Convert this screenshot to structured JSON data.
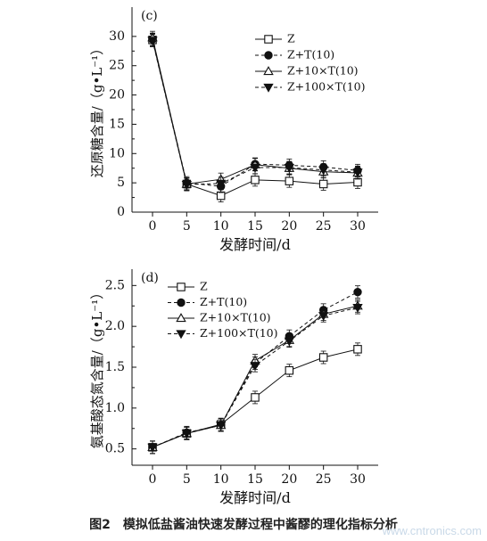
{
  "caption": "图2　模拟低盐酱油快速发酵过程中酱醪的理化指标分析",
  "watermark": "www.cntronics.com",
  "chart_data": [
    {
      "type": "line",
      "panel": "(c)",
      "xlabel": "发酵时间/d",
      "ylabel": "还原糖含量/（g•L⁻¹）",
      "x": [
        0,
        5,
        10,
        15,
        20,
        25,
        30
      ],
      "xlim": [
        -3,
        33
      ],
      "ylim": [
        0,
        35
      ],
      "yticks": [
        0,
        5,
        10,
        15,
        20,
        25,
        30
      ],
      "legend": "top-right",
      "series": [
        {
          "name": "Z",
          "marker": "square-open",
          "dash": "solid",
          "values": [
            29.4,
            4.8,
            2.8,
            5.5,
            5.3,
            4.8,
            5.1
          ]
        },
        {
          "name": "Z+T(10)",
          "marker": "circle-filled",
          "dash": "dashed",
          "values": [
            29.5,
            5.0,
            4.4,
            8.2,
            8.0,
            7.7,
            7.1
          ]
        },
        {
          "name": "Z+10×T(10)",
          "marker": "triangle-up-open",
          "dash": "solid",
          "values": [
            29.8,
            4.8,
            5.6,
            8.1,
            7.5,
            6.9,
            6.7
          ]
        },
        {
          "name": "Z+100×T(10)",
          "marker": "triangle-down-filled",
          "dash": "dashed",
          "values": [
            29.3,
            4.7,
            4.9,
            7.6,
            7.6,
            7.2,
            6.8
          ]
        }
      ]
    },
    {
      "type": "line",
      "panel": "(d)",
      "xlabel": "发酵时间/d",
      "ylabel": "氨基酸态氮含量/（g•L⁻¹）",
      "x": [
        0,
        5,
        10,
        15,
        20,
        25,
        30
      ],
      "xlim": [
        -3,
        33
      ],
      "ylim": [
        0.3,
        2.7
      ],
      "yticks": [
        0.5,
        1.0,
        1.5,
        2.0,
        2.5
      ],
      "legend": "top-left",
      "series": [
        {
          "name": "Z",
          "marker": "square-open",
          "dash": "solid",
          "values": [
            0.52,
            0.69,
            0.8,
            1.13,
            1.46,
            1.62,
            1.72
          ]
        },
        {
          "name": "Z+T(10)",
          "marker": "circle-filled",
          "dash": "dashed",
          "values": [
            0.52,
            0.7,
            0.79,
            1.55,
            1.88,
            2.2,
            2.42
          ]
        },
        {
          "name": "Z+10×T(10)",
          "marker": "triangle-up-open",
          "dash": "solid",
          "values": [
            0.52,
            0.69,
            0.79,
            1.58,
            1.83,
            2.15,
            2.25
          ]
        },
        {
          "name": "Z+100×T(10)",
          "marker": "triangle-down-filled",
          "dash": "dashed",
          "values": [
            0.52,
            0.69,
            0.79,
            1.52,
            1.82,
            2.13,
            2.23
          ]
        }
      ]
    }
  ]
}
